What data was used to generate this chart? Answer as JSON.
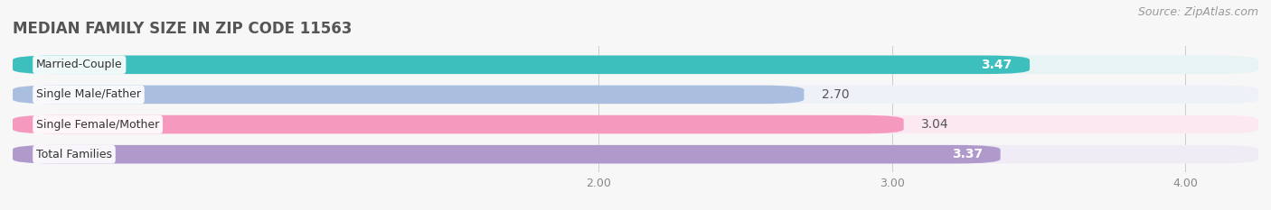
{
  "title": "MEDIAN FAMILY SIZE IN ZIP CODE 11563",
  "source": "Source: ZipAtlas.com",
  "categories": [
    "Married-Couple",
    "Single Male/Father",
    "Single Female/Mother",
    "Total Families"
  ],
  "values": [
    3.47,
    2.7,
    3.04,
    3.37
  ],
  "bar_colors": [
    "#3dbfbe",
    "#aabfe0",
    "#f599be",
    "#b09acc"
  ],
  "bar_bg_colors": [
    "#e8f4f4",
    "#eef2f8",
    "#fce8f0",
    "#f0ecf6"
  ],
  "xlim": [
    0,
    4.25
  ],
  "xmin": 0,
  "xticks": [
    2.0,
    3.0,
    4.0
  ],
  "xtick_labels": [
    "2.00",
    "3.00",
    "4.00"
  ],
  "value_colors": [
    "#ffffff",
    "#666666",
    "#666666",
    "#ffffff"
  ],
  "value_inside": [
    true,
    false,
    false,
    true
  ],
  "background_color": "#f7f7f7",
  "plot_bg_color": "#ffffff",
  "title_fontsize": 12,
  "source_fontsize": 9,
  "bar_label_fontsize": 10,
  "category_fontsize": 9,
  "bar_height": 0.62,
  "bar_gap": 0.18
}
